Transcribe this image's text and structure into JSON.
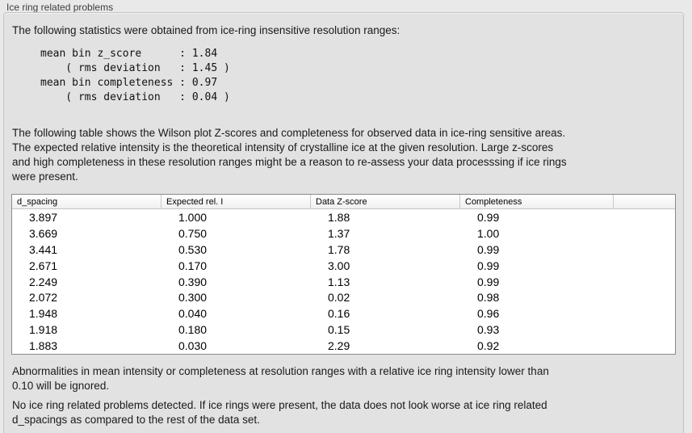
{
  "panel": {
    "title": "Ice ring related problems"
  },
  "intro": "The following statistics were obtained from ice-ring insensitive resolution ranges:",
  "stats_block": "mean bin z_score      : 1.84\n    ( rms deviation   : 1.45 )\nmean bin completeness : 0.97\n    ( rms deviation   : 0.04 )",
  "stats": {
    "mean_bin_z_score": "1.84",
    "z_score_rms_deviation": "1.45",
    "mean_bin_completeness": "0.97",
    "completeness_rms_deviation": "0.04"
  },
  "description": "The following table shows the Wilson plot Z-scores and completeness for observed data in ice-ring sensitive areas.\nThe expected relative intensity is the theoretical intensity of crystalline ice at the given resolution. Large z-scores\nand high completeness in these resolution ranges might be a reason to re-assess your data processsing if ice rings\nwere present.",
  "table": {
    "columns": [
      "d_spacing",
      "Expected rel. I",
      "Data Z-score",
      "Completeness"
    ],
    "rows": [
      [
        "3.897",
        "1.000",
        "1.88",
        "0.99"
      ],
      [
        "3.669",
        "0.750",
        "1.37",
        "1.00"
      ],
      [
        "3.441",
        "0.530",
        "1.78",
        "0.99"
      ],
      [
        "2.671",
        "0.170",
        "3.00",
        "0.99"
      ],
      [
        "2.249",
        "0.390",
        "1.13",
        "0.99"
      ],
      [
        "2.072",
        "0.300",
        "0.02",
        "0.98"
      ],
      [
        "1.948",
        "0.040",
        "0.16",
        "0.96"
      ],
      [
        "1.918",
        "0.180",
        "0.15",
        "0.93"
      ],
      [
        "1.883",
        "0.030",
        "2.29",
        "0.92"
      ]
    ]
  },
  "footer_note": "Abnormalities in mean intensity or completeness at resolution ranges with a relative ice ring intensity lower than\n0.10 will be ignored.",
  "conclusion": "No ice ring related problems detected. If ice rings were present, the data does not look worse at ice ring related\nd_spacings as compared to the rest of the data set."
}
